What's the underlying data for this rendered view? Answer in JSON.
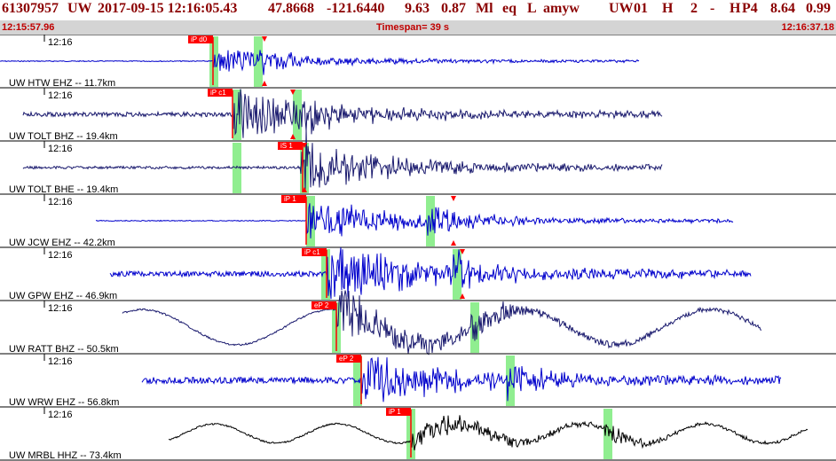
{
  "header": {
    "event_id": "61307957",
    "network": "UW",
    "datetime": "2017-09-15 12:16:05.43",
    "lat": "47.8668",
    "lon": "-121.6440",
    "depth": "9.63",
    "magnitude": "0.87",
    "mag_type": "Ml",
    "etype": "eq",
    "flag": "L",
    "author": "amyw",
    "net2": "UW",
    "version": "01",
    "quality": "H",
    "nph": "2",
    "dash": "-",
    "stat": "H",
    "pcode": "P4",
    "v1": "8.64",
    "v2": "0.99"
  },
  "timeline": {
    "start": "12:15:57.96",
    "timespan": "Timespan=  39 s",
    "end": "12:16:37.18"
  },
  "colors": {
    "title": "#8b0000",
    "timeline_bg": "#d4d4d4",
    "timeline_text": "#c00000",
    "trace_blue": "#0000cc",
    "trace_navy": "#1a1a6e",
    "trace_black": "#000000",
    "pick_red": "#ff0000",
    "green_window": "#90ee90"
  },
  "traces": [
    {
      "label": "UW HTW EHZ -- 11.7km",
      "time": "12:16",
      "pick": "iP d0",
      "color": "blue"
    },
    {
      "label": "UW TOLT BHZ -- 19.4km",
      "time": "12:16",
      "pick": "iP c1",
      "color": "navy"
    },
    {
      "label": "UW TOLT BHE -- 19.4km",
      "time": "12:16",
      "pick": "iS 1",
      "color": "navy"
    },
    {
      "label": "UW JCW EHZ -- 42.2km",
      "time": "12:16",
      "pick": "iP 1",
      "color": "blue"
    },
    {
      "label": "UW GPW EHZ -- 46.9km",
      "time": "12:16",
      "pick": "iP c1",
      "color": "blue"
    },
    {
      "label": "UW RATT BHZ -- 50.5km",
      "time": "12:16",
      "pick": "eP 2",
      "color": "navy"
    },
    {
      "label": "UW WRW EHZ -- 56.8km",
      "time": "12:16",
      "pick": "eP 2",
      "color": "blue"
    },
    {
      "label": "UW MRBL HHZ -- 73.4km",
      "time": "12:16",
      "pick": "iP 1",
      "color": "black"
    }
  ]
}
